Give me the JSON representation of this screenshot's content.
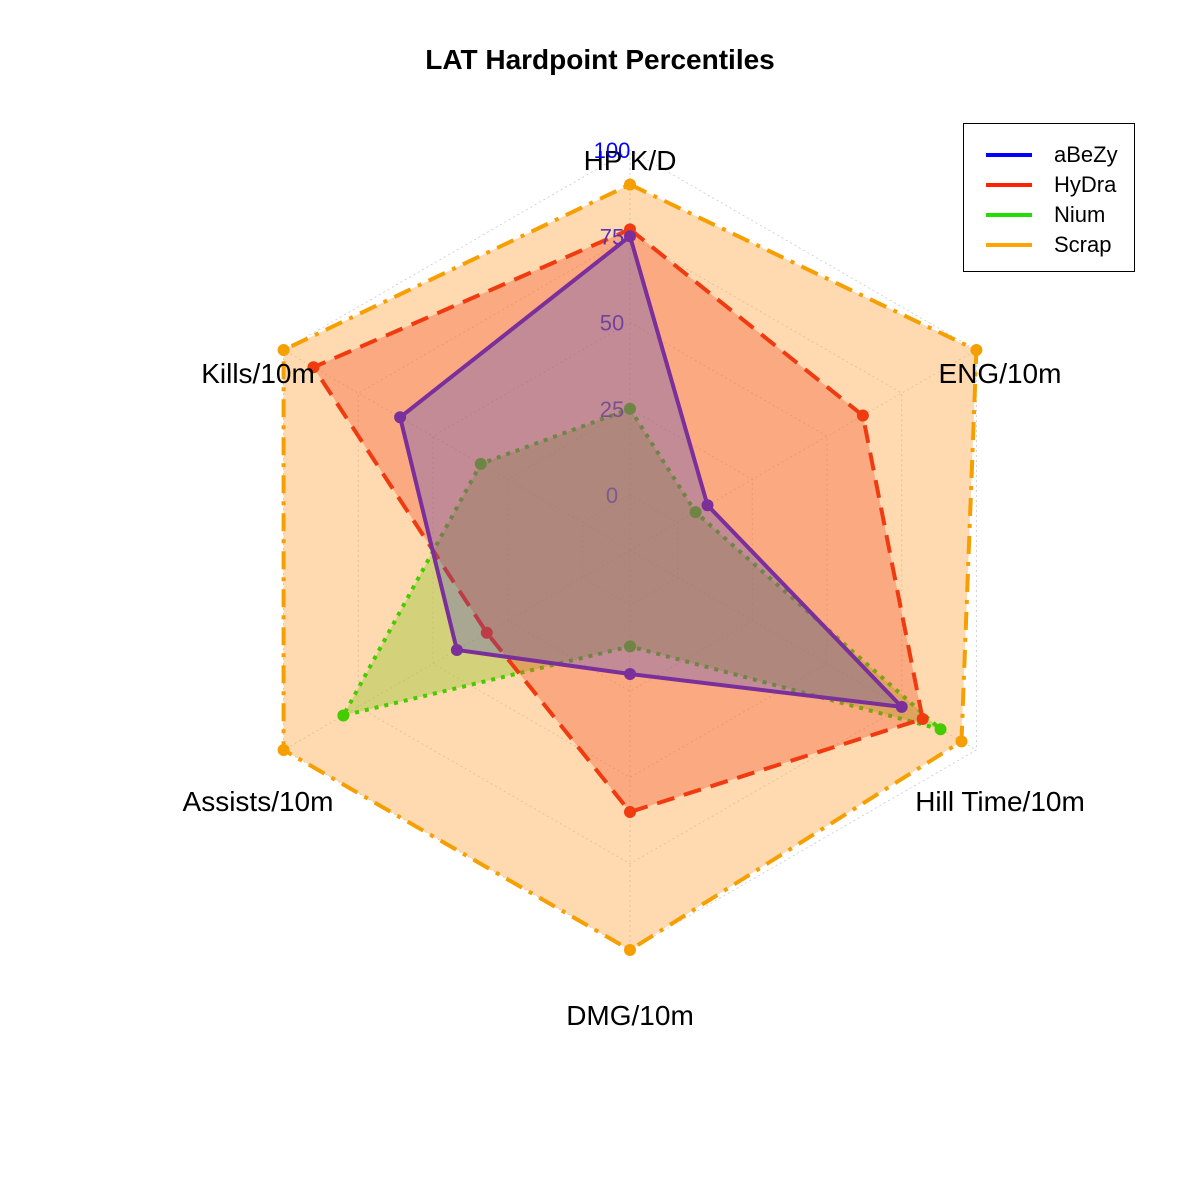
{
  "chart_data": {
    "type": "radar",
    "title": "LAT Hardpoint Percentiles",
    "axes": [
      "HP K/D",
      "ENG/10m",
      "Hill Time/10m",
      "DMG/10m",
      "Assists/10m",
      "Kills/10m"
    ],
    "range": [
      0,
      100
    ],
    "ticks": [
      "0",
      "25",
      "50",
      "75",
      "100"
    ],
    "tick_colors": [
      "#7a5c8c",
      "#7a4f8f",
      "#6f44a0",
      "#5a33b8",
      "#0000ff"
    ],
    "grid": true,
    "legend_position": "top-right",
    "series": [
      {
        "name": "aBeZy",
        "color": "#0000ff",
        "line_color": "#7a2f9a",
        "fill": "rgba(70,70,200,0.30)",
        "line_style": "solid",
        "values": [
          75,
          10,
          75,
          20,
          42,
          61
        ]
      },
      {
        "name": "HyDra",
        "color": "#ff2200",
        "line_color": "#f03a10",
        "fill": "rgba(240,80,40,0.35)",
        "line_style": "dashed",
        "values": [
          77,
          62,
          82,
          60,
          32,
          90
        ]
      },
      {
        "name": "Nium",
        "color": "#22dd00",
        "line_color": "#44cc00",
        "fill": "rgba(160,200,60,0.45)",
        "line_style": "dotted",
        "values": [
          25,
          6,
          88,
          12,
          80,
          34
        ]
      },
      {
        "name": "Scrap",
        "color": "#ffa500",
        "line_color": "#f5a000",
        "fill": "rgba(255,170,80,0.45)",
        "line_style": "dashdot",
        "values": [
          90,
          100,
          95,
          100,
          100,
          100
        ]
      }
    ]
  }
}
